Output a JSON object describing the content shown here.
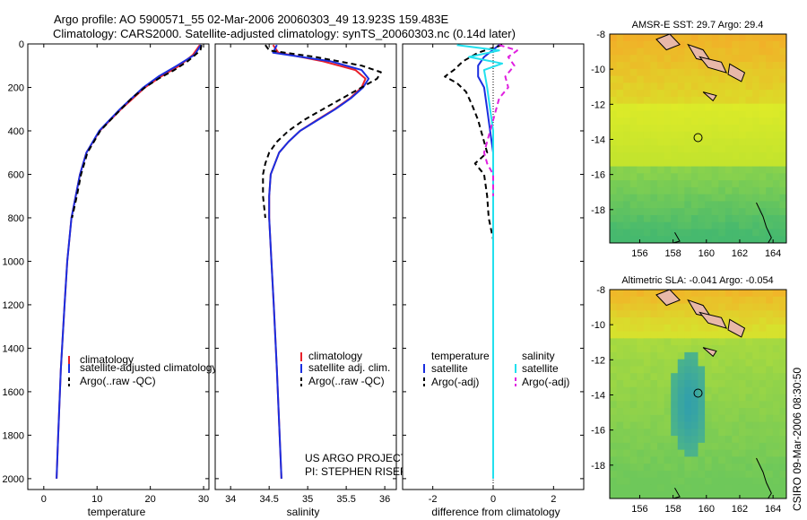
{
  "figure": {
    "title_line1": "Argo profile: AO 5900571_55 02-Mar-2006 20060303_49 13.923S 159.483E",
    "title_line2": "Climatology: CARS2000. Satellite-adjusted climatology: synTS_20060303.nc (0.14d later)",
    "side_stamp": "CSIRO 09-Mar-2006 08:30:50",
    "credit_line1": "US ARGO PROJECT",
    "credit_line2": "PI: STEPHEN RISER"
  },
  "colors": {
    "climatology": "#e8202a",
    "satellite": "#1a2ee0",
    "argo": "#000000",
    "satellite_salinity": "#22e0ee",
    "argo_salinity": "#e020e0"
  },
  "chart_data": [
    {
      "type": "line",
      "name": "temperature",
      "xlabel": "temperature",
      "xlim": [
        -3,
        31
      ],
      "xticks": [
        0,
        10,
        20,
        30
      ],
      "ylim": [
        2050,
        0
      ],
      "yticks": [
        0,
        200,
        400,
        600,
        800,
        1000,
        1200,
        1400,
        1600,
        1800,
        2000
      ],
      "legend": [
        "climatology",
        "satellite-adjusted climatology",
        "Argo(..raw -QC)"
      ],
      "series": [
        {
          "name": "climatology",
          "color_key": "climatology",
          "dash": false,
          "depth": [
            5,
            50,
            100,
            150,
            200,
            300,
            400,
            500,
            600,
            800,
            1000,
            1200,
            1500,
            1800,
            2000
          ],
          "values": [
            29.3,
            28.0,
            25.5,
            22.0,
            19.0,
            14.5,
            10.5,
            8.0,
            6.8,
            5.2,
            4.4,
            3.9,
            3.2,
            2.7,
            2.4
          ]
        },
        {
          "name": "satellite-adjusted climatology",
          "color_key": "satellite",
          "dash": false,
          "depth": [
            5,
            50,
            100,
            150,
            200,
            300,
            400,
            500,
            600,
            800,
            1000,
            1200,
            1500,
            1800,
            2000
          ],
          "values": [
            29.5,
            28.3,
            25.0,
            21.5,
            18.7,
            14.3,
            10.4,
            8.0,
            6.8,
            5.2,
            4.4,
            3.9,
            3.2,
            2.7,
            2.4
          ]
        },
        {
          "name": "Argo(..raw -QC)",
          "color_key": "argo",
          "dash": true,
          "depth": [
            5,
            30,
            80,
            120,
            160,
            200,
            250,
            300,
            350,
            400,
            450,
            500,
            550,
            600,
            700,
            800
          ],
          "values": [
            29.6,
            29.4,
            27.0,
            24.5,
            21.5,
            19.0,
            16.5,
            14.5,
            12.5,
            10.6,
            9.4,
            8.2,
            7.6,
            7.0,
            6.2,
            5.3
          ]
        }
      ]
    },
    {
      "type": "line",
      "name": "salinity",
      "xlabel": "salinity",
      "xlim": [
        33.8,
        36.15
      ],
      "xticks": [
        34,
        34.5,
        35,
        35.5,
        36
      ],
      "ylim": [
        2050,
        0
      ],
      "legend": [
        "climatology",
        "satellite adj. clim.",
        "Argo(..raw -QC)"
      ],
      "series": [
        {
          "name": "climatology",
          "color_key": "climatology",
          "dash": false,
          "depth": [
            5,
            40,
            80,
            120,
            160,
            200,
            250,
            300,
            350,
            400,
            450,
            500,
            600,
            700,
            800,
            1000,
            1200,
            1500,
            2000
          ],
          "values": [
            34.55,
            34.62,
            35.2,
            35.62,
            35.75,
            35.7,
            35.55,
            35.35,
            35.12,
            34.9,
            34.75,
            34.63,
            34.52,
            34.5,
            34.5,
            34.53,
            34.56,
            34.6,
            34.66
          ]
        },
        {
          "name": "satellite adj. clim.",
          "color_key": "satellite",
          "dash": false,
          "depth": [
            5,
            40,
            80,
            120,
            160,
            200,
            250,
            300,
            350,
            400,
            450,
            500,
            600,
            700,
            800,
            1000,
            1200,
            1500,
            2000
          ],
          "values": [
            34.6,
            34.55,
            35.3,
            35.7,
            35.79,
            35.72,
            35.56,
            35.36,
            35.13,
            34.9,
            34.75,
            34.63,
            34.52,
            34.5,
            34.5,
            34.53,
            34.56,
            34.6,
            34.66
          ]
        },
        {
          "name": "Argo(..raw -QC)",
          "color_key": "argo",
          "dash": true,
          "depth": [
            5,
            30,
            60,
            100,
            130,
            160,
            200,
            250,
            300,
            350,
            400,
            450,
            500,
            550,
            600,
            700,
            800
          ],
          "values": [
            34.45,
            34.5,
            35.1,
            35.7,
            35.95,
            35.9,
            35.7,
            35.45,
            35.2,
            34.95,
            34.75,
            34.6,
            34.5,
            34.45,
            34.42,
            34.42,
            34.45
          ]
        }
      ]
    },
    {
      "type": "line",
      "name": "difference",
      "xlabel": "difference from climatology",
      "xlim": [
        -3,
        3
      ],
      "xticks": [
        -2,
        0,
        2
      ],
      "ylim": [
        2050,
        0
      ],
      "legend": {
        "temperature_header": "temperature",
        "salinity_header": "salinity",
        "satellite_t": "satellite",
        "argo_t": "Argo(-adj)",
        "satellite_s": "satellite",
        "argo_s": "Argo(-adj)"
      },
      "series": [
        {
          "name": "temperature satellite",
          "color_key": "satellite",
          "dash": false,
          "depth": [
            5,
            60,
            100,
            150,
            200,
            300,
            400,
            500,
            600,
            800,
            1000,
            1500,
            2000
          ],
          "values": [
            0.2,
            -0.3,
            -0.5,
            -0.5,
            -0.3,
            -0.2,
            -0.1,
            0.0,
            0.0,
            0.0,
            0.0,
            0.0,
            0.0
          ]
        },
        {
          "name": "temperature Argo(-adj)",
          "color_key": "argo",
          "dash": true,
          "depth": [
            5,
            40,
            80,
            120,
            150,
            180,
            220,
            280,
            350,
            400,
            450,
            500,
            550,
            600,
            700,
            800,
            900,
            1000
          ],
          "values": [
            0.3,
            -0.5,
            -1.0,
            -1.3,
            -1.6,
            -1.2,
            -0.9,
            -0.7,
            -0.5,
            -0.4,
            -0.3,
            -0.2,
            -0.6,
            -0.3,
            -0.2,
            -0.15,
            0.0,
            0.0
          ]
        },
        {
          "name": "salinity satellite",
          "color_key": "satellite_salinity",
          "dash": false,
          "depth": [
            5,
            30,
            60,
            90,
            120,
            200,
            300,
            400,
            500,
            600,
            800,
            1000,
            1500,
            2000
          ],
          "values": [
            -1.2,
            0.2,
            -0.8,
            0.3,
            -0.3,
            -0.2,
            -0.1,
            0.0,
            0.0,
            0.0,
            0.0,
            0.0,
            0.0,
            0.0
          ]
        },
        {
          "name": "salinity Argo(-adj)",
          "color_key": "argo_salinity",
          "dash": true,
          "depth": [
            5,
            30,
            60,
            100,
            150,
            200,
            250,
            300,
            400,
            500,
            550,
            600,
            700
          ],
          "values": [
            0.2,
            0.8,
            0.5,
            0.7,
            0.4,
            0.5,
            0.2,
            0.1,
            -0.1,
            -0.3,
            -0.2,
            0.0,
            0.0
          ]
        }
      ]
    },
    {
      "type": "heatmap",
      "name": "sst_map",
      "title": "AMSR-E SST: 29.7 Argo: 29.4",
      "lon_range": [
        154.2,
        164.8
      ],
      "lat_range": [
        -19.9,
        -8
      ],
      "xticks": [
        156,
        158,
        160,
        162,
        164
      ],
      "yticks": [
        -8,
        -10,
        -12,
        -14,
        -16,
        -18
      ],
      "marker": {
        "lon": 159.5,
        "lat": -13.9
      }
    },
    {
      "type": "heatmap",
      "name": "sla_map",
      "title": "Altimetric SLA: -0.041 Argo: -0.054",
      "lon_range": [
        154.2,
        164.8
      ],
      "lat_range": [
        -19.9,
        -8
      ],
      "xticks": [
        156,
        158,
        160,
        162,
        164
      ],
      "yticks": [
        -8,
        -10,
        -12,
        -14,
        -16,
        -18
      ],
      "marker": {
        "lon": 159.5,
        "lat": -13.9
      }
    }
  ]
}
